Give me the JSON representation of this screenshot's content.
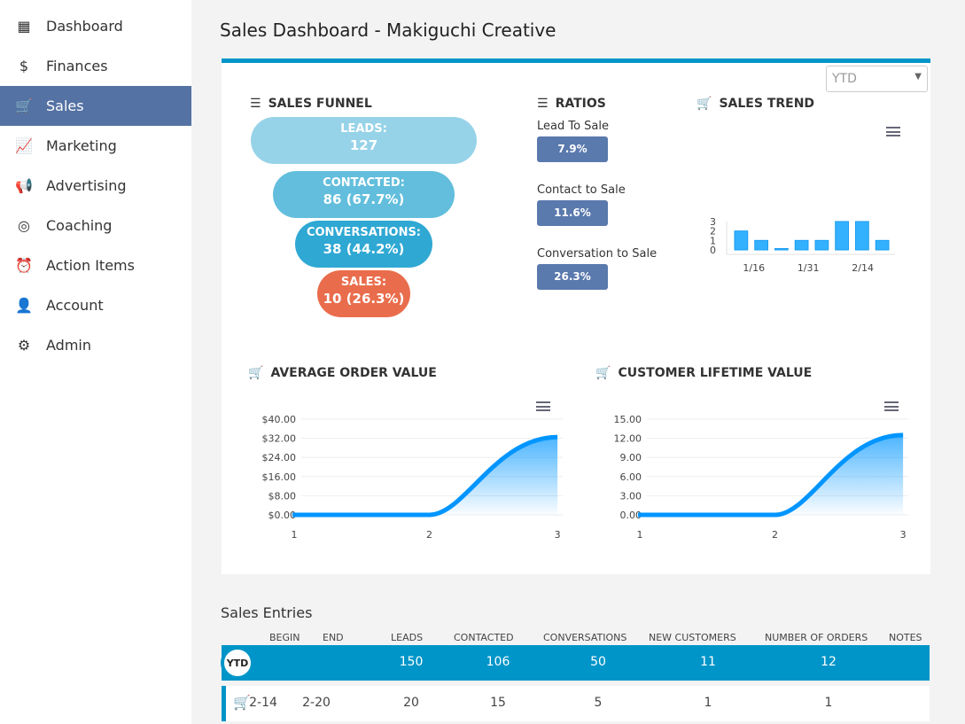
{
  "sidebar": {
    "items": [
      {
        "label": "Dashboard",
        "icon": "dashboard-icon"
      },
      {
        "label": "Finances",
        "icon": "dollar-icon"
      },
      {
        "label": "Sales",
        "icon": "cart-icon",
        "active": true
      },
      {
        "label": "Marketing",
        "icon": "chart-icon"
      },
      {
        "label": "Advertising",
        "icon": "megaphone-icon"
      },
      {
        "label": "Coaching",
        "icon": "lifebuoy-icon"
      },
      {
        "label": "Action Items",
        "icon": "alarm-icon"
      },
      {
        "label": "Account",
        "icon": "account-icon"
      },
      {
        "label": "Admin",
        "icon": "gear-icon"
      }
    ]
  },
  "header": {
    "title": "Sales Dashboard - Makiguchi Creative"
  },
  "period_select": {
    "value": "YTD"
  },
  "funnel": {
    "title": "SALES FUNNEL",
    "stages": [
      {
        "label": "LEADS:",
        "value": "127",
        "color": "#97d3e8"
      },
      {
        "label": "CONTACTED:",
        "value": "86 (67.7%)",
        "color": "#62bedc"
      },
      {
        "label": "CONVERSATIONS:",
        "value": "38 (44.2%)",
        "color": "#2fa8d3"
      },
      {
        "label": "SALES:",
        "value": "10 (26.3%)",
        "color": "#e96d4c"
      }
    ]
  },
  "ratios": {
    "title": "RATIOS",
    "items": [
      {
        "label": "Lead To Sale",
        "value": "7.9%"
      },
      {
        "label": "Contact to Sale",
        "value": "11.6%"
      },
      {
        "label": "Conversation to Sale",
        "value": "26.3%"
      }
    ]
  },
  "chart_data": [
    {
      "type": "bar",
      "title": "SALES TREND",
      "values": [
        2,
        1,
        0,
        1,
        1,
        3,
        3,
        1
      ],
      "tick_labels": [
        "1/16",
        "1/31",
        "2/14"
      ],
      "yticks": [
        0,
        1,
        2,
        3
      ],
      "ylim": [
        0,
        3
      ],
      "color": "#33b1ff"
    },
    {
      "type": "area",
      "title": "AVERAGE ORDER VALUE",
      "x": [
        1,
        2,
        3
      ],
      "values": [
        0,
        0,
        32.5
      ],
      "yticks": [
        "$0.00",
        "$8.00",
        "$16.00",
        "$24.00",
        "$32.00",
        "$40.00"
      ],
      "xticks": [
        "1",
        "2",
        "3"
      ],
      "ylim": [
        0,
        40
      ],
      "color": "#0095ff"
    },
    {
      "type": "area",
      "title": "CUSTOMER LIFETIME VALUE",
      "x": [
        1,
        2,
        3
      ],
      "values": [
        0,
        0,
        12.5
      ],
      "yticks": [
        "0.00",
        "3.00",
        "6.00",
        "9.00",
        "12.00",
        "15.00"
      ],
      "xticks": [
        "1",
        "2",
        "3"
      ],
      "ylim": [
        0,
        15
      ],
      "color": "#0095ff"
    }
  ],
  "entries": {
    "title": "Sales Entries",
    "columns": [
      "BEGIN",
      "END",
      "LEADS",
      "CONTACTED",
      "CONVERSATIONS",
      "NEW CUSTOMERS",
      "NUMBER OF ORDERS",
      "NOTES"
    ],
    "ytd": {
      "badge": "YTD",
      "leads": "150",
      "contacted": "106",
      "conversations": "50",
      "new_customers": "11",
      "orders": "12"
    },
    "rows": [
      {
        "begin": "2-14",
        "end": "2-20",
        "leads": "20",
        "contacted": "15",
        "conversations": "5",
        "new_customers": "1",
        "orders": "1"
      }
    ]
  }
}
